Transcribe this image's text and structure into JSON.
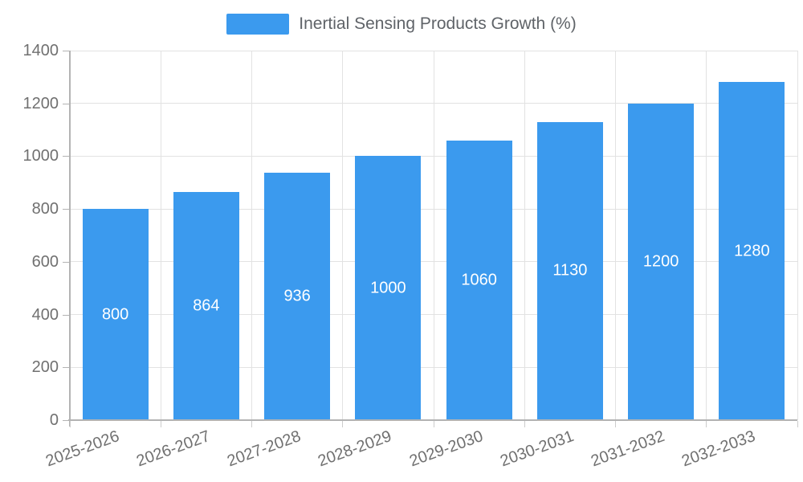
{
  "legend": {
    "label": "Inertial Sensing Products Growth (%)"
  },
  "chart_data": {
    "type": "bar",
    "title": "Inertial Sensing Products Growth (%)",
    "categories": [
      "2025-2026",
      "2026-2027",
      "2027-2028",
      "2028-2029",
      "2029-2030",
      "2030-2031",
      "2031-2032",
      "2032-2033"
    ],
    "values": [
      800,
      864,
      936,
      1000,
      1060,
      1130,
      1200,
      1280
    ],
    "value_labels": [
      "800",
      "864",
      "936",
      "1000",
      "1060",
      "1130",
      "1200",
      "1280"
    ],
    "xlabel": "",
    "ylabel": "",
    "ylim": [
      0,
      1400
    ],
    "yticks": [
      0,
      200,
      400,
      600,
      800,
      1000,
      1200,
      1400
    ],
    "grid": true,
    "legend_position": "top",
    "x_label_rotation_deg": -20,
    "colors": {
      "bar": "#3B9AEE",
      "value_label": "#FFFFFF",
      "axis_line": "#B3B3B3",
      "grid_line": "#E2E2E2",
      "tick_line": "#CCCCCC",
      "axis_text": "#707070",
      "legend_text": "#5F6368"
    }
  }
}
